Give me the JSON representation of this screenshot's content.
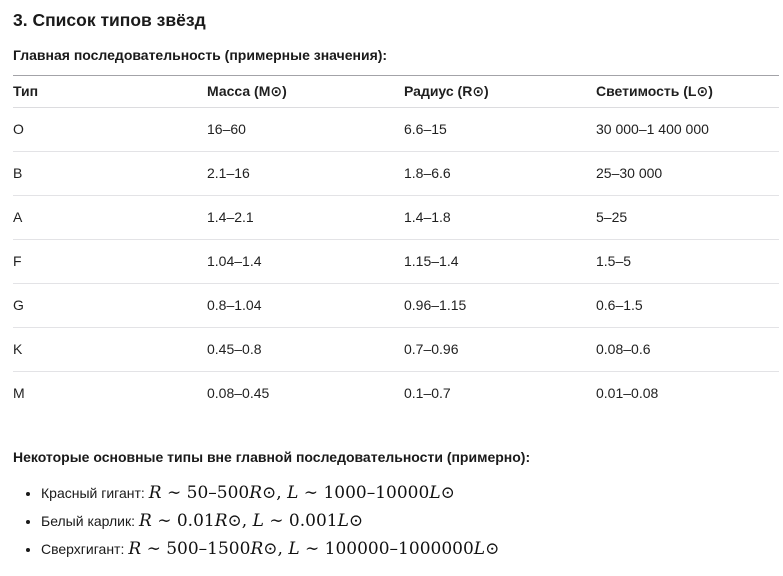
{
  "page": {
    "title": "3. Список типов звёзд",
    "table_intro": "Главная последовательность (примерные значения):",
    "offsequence_heading": "Некоторые основные типы вне главной последовательности (примерно):"
  },
  "table": {
    "columns": [
      "Тип",
      "Масса (M⊙)",
      "Радиус (R⊙)",
      "Светимость (L⊙)"
    ],
    "rows": [
      [
        "O",
        "16–60",
        "6.6–15",
        "30 000–1 400 000"
      ],
      [
        "B",
        "2.1–16",
        "1.8–6.6",
        "25–30 000"
      ],
      [
        "A",
        "1.4–2.1",
        "1.4–1.8",
        "5–25"
      ],
      [
        "F",
        "1.04–1.4",
        "1.15–1.4",
        "1.5–5"
      ],
      [
        "G",
        "0.8–1.04",
        "0.96–1.15",
        "0.6–1.5"
      ],
      [
        "K",
        "0.45–0.8",
        "0.7–0.96",
        "0.08–0.6"
      ],
      [
        "M",
        "0.08–0.45",
        "0.1–0.7",
        "0.01–0.08"
      ]
    ]
  },
  "list": {
    "items": [
      {
        "label": "Красный гигант:",
        "math": "R ∼ 50–500R⊙, L ∼ 1000–10000L⊙"
      },
      {
        "label": "Белый карлик:",
        "math": "R ∼ 0.01R⊙, L ∼ 0.001L⊙"
      },
      {
        "label": "Сверхгигант:",
        "math": "R ∼ 500–1500R⊙, L ∼ 100000–1000000L⊙"
      }
    ]
  }
}
